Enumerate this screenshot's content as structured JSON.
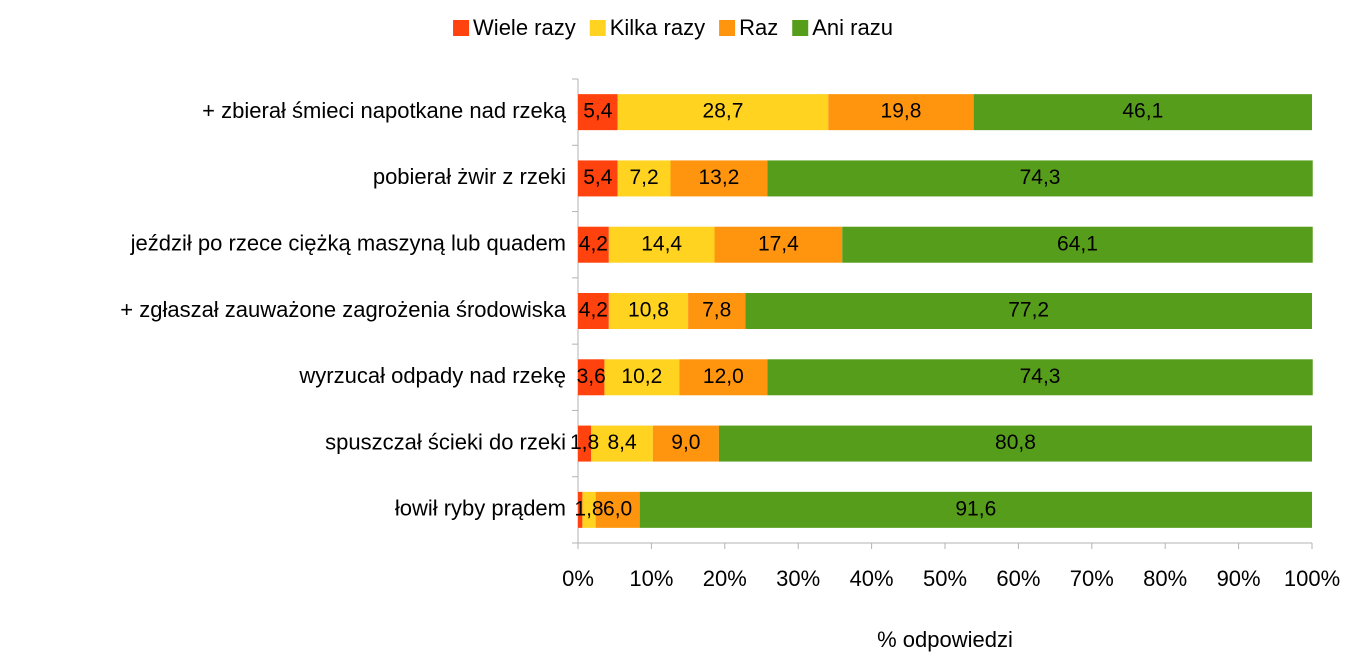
{
  "chart_data": {
    "type": "stacked_barh",
    "categories": [
      "+ zbierał śmieci napotkane nad rzeką",
      "pobierał żwir z rzeki",
      "jeździł po rzece ciężką maszyną lub quadem",
      "+ zgłaszał zauważone zagrożenia środowiska",
      "wyrzucał odpady nad rzekę",
      "spuszczał ścieki do rzeki",
      "łowił ryby prądem"
    ],
    "series": [
      {
        "name": "Wiele razy",
        "color": "#ff420e",
        "values": [
          5.4,
          5.4,
          4.2,
          4.2,
          3.6,
          1.8,
          0.6
        ],
        "value_labels": [
          "5,4",
          "5,4",
          "4,2",
          "4,2",
          "3,6",
          "1,8",
          null
        ]
      },
      {
        "name": "Kilka razy",
        "color": "#ffd320",
        "values": [
          28.7,
          7.2,
          14.4,
          10.8,
          10.2,
          8.4,
          1.8
        ],
        "value_labels": [
          "28,7",
          "7,2",
          "14,4",
          "10,8",
          "10,2",
          "8,4",
          "1,8"
        ]
      },
      {
        "name": "Raz",
        "color": "#ff950e",
        "values": [
          19.8,
          13.2,
          17.4,
          7.8,
          12.0,
          9.0,
          6.0
        ],
        "value_labels": [
          "19,8",
          "13,2",
          "17,4",
          "7,8",
          "12,0",
          "9,0",
          "6,0"
        ]
      },
      {
        "name": "Ani razu",
        "color": "#579d1c",
        "values": [
          46.1,
          74.3,
          64.1,
          77.2,
          74.3,
          80.8,
          91.6
        ],
        "value_labels": [
          "46,1",
          "74,3",
          "64,1",
          "77,2",
          "74,3",
          "80,8",
          "91,6"
        ]
      }
    ],
    "xlabel": "% odpowiedzi",
    "xlim": [
      0,
      100
    ],
    "xticks": [
      {
        "value": 0,
        "label": "0%"
      },
      {
        "value": 10,
        "label": "10%"
      },
      {
        "value": 20,
        "label": "20%"
      },
      {
        "value": 30,
        "label": "30%"
      },
      {
        "value": 40,
        "label": "40%"
      },
      {
        "value": 50,
        "label": "50%"
      },
      {
        "value": 60,
        "label": "60%"
      },
      {
        "value": 70,
        "label": "70%"
      },
      {
        "value": 80,
        "label": "80%"
      },
      {
        "value": 90,
        "label": "90%"
      },
      {
        "value": 100,
        "label": "100%"
      }
    ],
    "legend": "top"
  }
}
